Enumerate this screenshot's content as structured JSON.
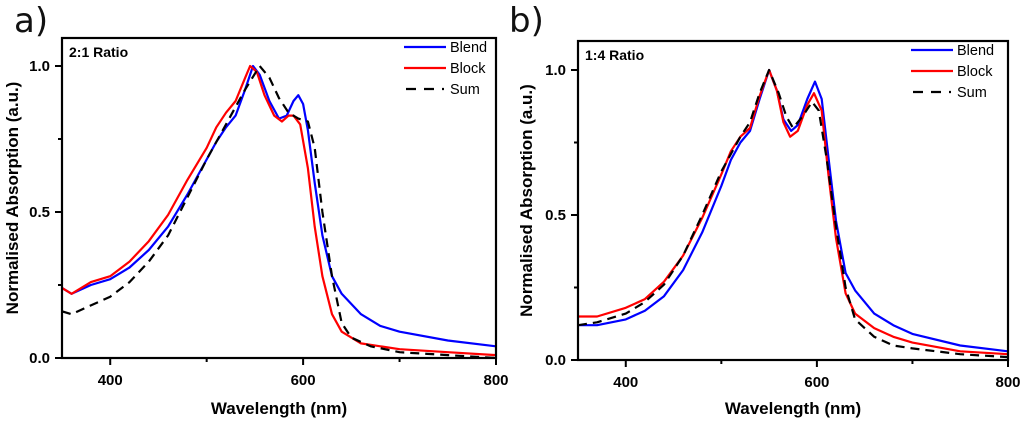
{
  "chart_data": [
    {
      "type": "line",
      "panel_label": "a)",
      "annotation": "2:1 Ratio",
      "title": "",
      "xlabel": "Wavelength (nm)",
      "ylabel": "Normalised Absorption (a.u.)",
      "xlim": [
        350,
        800
      ],
      "ylim": [
        0,
        1.1
      ],
      "xticks": [
        400,
        600,
        800
      ],
      "xticks_minor": [
        500,
        700
      ],
      "yticks": [
        0.0,
        0.5,
        1.0
      ],
      "ytick_labels": [
        "0.0",
        "0.5",
        "1.0"
      ],
      "yticks_minor": [
        0.25,
        0.75
      ],
      "grid": false,
      "legend_position": "top-right",
      "series": [
        {
          "name": "Blend",
          "color": "#0000ff",
          "style": "solid",
          "x": [
            350,
            360,
            380,
            400,
            420,
            440,
            460,
            480,
            500,
            510,
            520,
            530,
            540,
            548,
            555,
            565,
            575,
            583,
            590,
            595,
            600,
            605,
            612,
            620,
            630,
            640,
            660,
            680,
            700,
            750,
            800
          ],
          "y": [
            0.24,
            0.22,
            0.25,
            0.27,
            0.31,
            0.37,
            0.45,
            0.56,
            0.68,
            0.74,
            0.79,
            0.83,
            0.92,
            1.0,
            0.97,
            0.88,
            0.82,
            0.83,
            0.88,
            0.9,
            0.87,
            0.78,
            0.6,
            0.42,
            0.28,
            0.22,
            0.15,
            0.11,
            0.09,
            0.06,
            0.04
          ]
        },
        {
          "name": "Block",
          "color": "#ff0000",
          "style": "solid",
          "x": [
            350,
            360,
            380,
            400,
            420,
            440,
            460,
            480,
            500,
            510,
            520,
            530,
            540,
            545,
            552,
            560,
            570,
            578,
            585,
            590,
            597,
            605,
            612,
            620,
            630,
            640,
            660,
            700,
            750,
            800
          ],
          "y": [
            0.24,
            0.22,
            0.26,
            0.28,
            0.33,
            0.4,
            0.49,
            0.61,
            0.72,
            0.79,
            0.84,
            0.88,
            0.96,
            1.0,
            0.98,
            0.9,
            0.83,
            0.81,
            0.83,
            0.83,
            0.8,
            0.65,
            0.45,
            0.28,
            0.15,
            0.09,
            0.05,
            0.03,
            0.02,
            0.01
          ]
        },
        {
          "name": "Sum",
          "color": "#000000",
          "style": "dashed",
          "x": [
            350,
            360,
            380,
            400,
            420,
            440,
            460,
            480,
            500,
            520,
            540,
            555,
            565,
            575,
            585,
            595,
            605,
            612,
            620,
            630,
            640,
            650,
            670,
            700,
            750,
            800
          ],
          "y": [
            0.16,
            0.15,
            0.18,
            0.21,
            0.26,
            0.33,
            0.42,
            0.55,
            0.68,
            0.8,
            0.92,
            1.0,
            0.96,
            0.89,
            0.84,
            0.82,
            0.81,
            0.72,
            0.5,
            0.28,
            0.12,
            0.07,
            0.04,
            0.02,
            0.01,
            0.0
          ]
        }
      ]
    },
    {
      "type": "line",
      "panel_label": "b)",
      "annotation": "1:4 Ratio",
      "title": "",
      "xlabel": "Wavelength (nm)",
      "ylabel": "Normalised Absorption (a.u.)",
      "xlim": [
        350,
        800
      ],
      "ylim": [
        0,
        1.1
      ],
      "xticks": [
        400,
        600,
        800
      ],
      "xticks_minor": [
        500,
        700
      ],
      "yticks": [
        0.0,
        0.5,
        1.0
      ],
      "ytick_labels": [
        "0.0",
        "0.5",
        "1.0"
      ],
      "yticks_minor": [
        0.25,
        0.75
      ],
      "grid": false,
      "legend_position": "top-right",
      "series": [
        {
          "name": "Blend",
          "color": "#0000ff",
          "style": "solid",
          "x": [
            350,
            370,
            400,
            420,
            440,
            460,
            480,
            500,
            510,
            520,
            530,
            540,
            550,
            558,
            565,
            573,
            580,
            590,
            598,
            605,
            612,
            620,
            630,
            640,
            660,
            680,
            700,
            750,
            800
          ],
          "y": [
            0.12,
            0.12,
            0.14,
            0.17,
            0.22,
            0.31,
            0.44,
            0.6,
            0.69,
            0.75,
            0.79,
            0.9,
            1.0,
            0.93,
            0.83,
            0.79,
            0.81,
            0.9,
            0.96,
            0.9,
            0.7,
            0.48,
            0.3,
            0.24,
            0.16,
            0.12,
            0.09,
            0.05,
            0.03
          ]
        },
        {
          "name": "Block",
          "color": "#ff0000",
          "style": "solid",
          "x": [
            350,
            370,
            400,
            420,
            440,
            460,
            480,
            500,
            510,
            520,
            530,
            540,
            550,
            558,
            565,
            572,
            580,
            590,
            597,
            605,
            612,
            620,
            630,
            640,
            660,
            680,
            700,
            750,
            800
          ],
          "y": [
            0.15,
            0.15,
            0.18,
            0.21,
            0.27,
            0.36,
            0.49,
            0.64,
            0.72,
            0.77,
            0.8,
            0.91,
            1.0,
            0.93,
            0.82,
            0.77,
            0.79,
            0.88,
            0.92,
            0.86,
            0.64,
            0.42,
            0.23,
            0.16,
            0.11,
            0.08,
            0.06,
            0.03,
            0.02
          ]
        },
        {
          "name": "Sum",
          "color": "#000000",
          "style": "dashed",
          "x": [
            350,
            370,
            400,
            420,
            440,
            460,
            480,
            500,
            520,
            530,
            540,
            550,
            560,
            568,
            575,
            585,
            595,
            602,
            610,
            620,
            630,
            640,
            660,
            680,
            700,
            750,
            800
          ],
          "y": [
            0.12,
            0.13,
            0.16,
            0.2,
            0.26,
            0.36,
            0.5,
            0.65,
            0.77,
            0.82,
            0.92,
            1.0,
            0.92,
            0.84,
            0.8,
            0.84,
            0.89,
            0.86,
            0.7,
            0.46,
            0.25,
            0.14,
            0.08,
            0.05,
            0.04,
            0.02,
            0.01
          ]
        }
      ]
    }
  ]
}
